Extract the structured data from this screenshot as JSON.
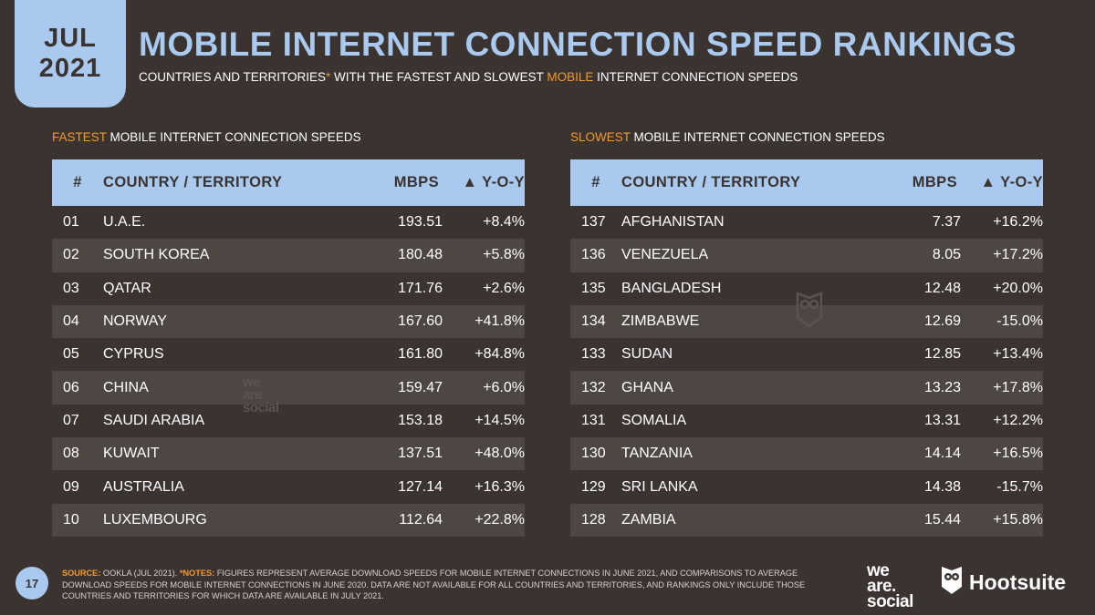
{
  "badge": {
    "month": "JUL",
    "year": "2021"
  },
  "title": "MOBILE INTERNET CONNECTION SPEED RANKINGS",
  "subtitle": {
    "part1": "COUNTRIES AND TERRITORIES",
    "asterisk": "*",
    "part2": " WITH THE FASTEST AND SLOWEST ",
    "highlight": "MOBILE",
    "part3": " INTERNET CONNECTION SPEEDS"
  },
  "fastest": {
    "label_highlight": "FASTEST",
    "label_rest": " MOBILE INTERNET CONNECTION SPEEDS",
    "headers": {
      "rank": "#",
      "country": "COUNTRY / TERRITORY",
      "mbps": "MBPS",
      "yoy": "▲ Y-O-Y"
    },
    "rows": [
      {
        "rank": "01",
        "country": "U.A.E.",
        "mbps": "193.51",
        "yoy": "+8.4%"
      },
      {
        "rank": "02",
        "country": "SOUTH KOREA",
        "mbps": "180.48",
        "yoy": "+5.8%"
      },
      {
        "rank": "03",
        "country": "QATAR",
        "mbps": "171.76",
        "yoy": "+2.6%"
      },
      {
        "rank": "04",
        "country": "NORWAY",
        "mbps": "167.60",
        "yoy": "+41.8%"
      },
      {
        "rank": "05",
        "country": "CYPRUS",
        "mbps": "161.80",
        "yoy": "+84.8%"
      },
      {
        "rank": "06",
        "country": "CHINA",
        "mbps": "159.47",
        "yoy": "+6.0%"
      },
      {
        "rank": "07",
        "country": "SAUDI ARABIA",
        "mbps": "153.18",
        "yoy": "+14.5%"
      },
      {
        "rank": "08",
        "country": "KUWAIT",
        "mbps": "137.51",
        "yoy": "+48.0%"
      },
      {
        "rank": "09",
        "country": "AUSTRALIA",
        "mbps": "127.14",
        "yoy": "+16.3%"
      },
      {
        "rank": "10",
        "country": "LUXEMBOURG",
        "mbps": "112.64",
        "yoy": "+22.8%"
      }
    ]
  },
  "slowest": {
    "label_highlight": "SLOWEST",
    "label_rest": " MOBILE INTERNET CONNECTION SPEEDS",
    "headers": {
      "rank": "#",
      "country": "COUNTRY / TERRITORY",
      "mbps": "MBPS",
      "yoy": "▲ Y-O-Y"
    },
    "rows": [
      {
        "rank": "137",
        "country": "AFGHANISTAN",
        "mbps": "7.37",
        "yoy": "+16.2%"
      },
      {
        "rank": "136",
        "country": "VENEZUELA",
        "mbps": "8.05",
        "yoy": "+17.2%"
      },
      {
        "rank": "135",
        "country": "BANGLADESH",
        "mbps": "12.48",
        "yoy": "+20.0%"
      },
      {
        "rank": "134",
        "country": "ZIMBABWE",
        "mbps": "12.69",
        "yoy": "-15.0%"
      },
      {
        "rank": "133",
        "country": "SUDAN",
        "mbps": "12.85",
        "yoy": "+13.4%"
      },
      {
        "rank": "132",
        "country": "GHANA",
        "mbps": "13.23",
        "yoy": "+17.8%"
      },
      {
        "rank": "131",
        "country": "SOMALIA",
        "mbps": "13.31",
        "yoy": "+12.2%"
      },
      {
        "rank": "130",
        "country": "TANZANIA",
        "mbps": "14.14",
        "yoy": "+16.5%"
      },
      {
        "rank": "129",
        "country": "SRI LANKA",
        "mbps": "14.38",
        "yoy": "-15.7%"
      },
      {
        "rank": "128",
        "country": "ZAMBIA",
        "mbps": "15.44",
        "yoy": "+15.8%"
      }
    ]
  },
  "footer": {
    "page_number": "17",
    "source_label": "SOURCE:",
    "source_text": " OOKLA (JUL 2021). ",
    "notes_label": "*NOTES:",
    "notes_text": " FIGURES REPRESENT AVERAGE DOWNLOAD SPEEDS FOR MOBILE INTERNET CONNECTIONS IN JUNE 2021, AND COMPARISONS TO AVERAGE DOWNLOAD SPEEDS FOR MOBILE INTERNET CONNECTIONS IN JUNE 2020. DATA ARE NOT AVAILABLE FOR ALL COUNTRIES AND TERRITORIES, AND RANKINGS ONLY INCLUDE THOSE COUNTRIES AND TERRITORIES FOR WHICH DATA ARE AVAILABLE IN JULY 2021."
  },
  "logos": {
    "we_are_social": [
      "we",
      "are.",
      "social"
    ],
    "hootsuite": "Hootsuite",
    "watermark": [
      "we",
      "are",
      "social"
    ]
  },
  "colors": {
    "background": "#3a3330",
    "accent_blue": "#a9c9ee",
    "accent_orange": "#f29a2e",
    "row_alt": "#4d4643"
  }
}
